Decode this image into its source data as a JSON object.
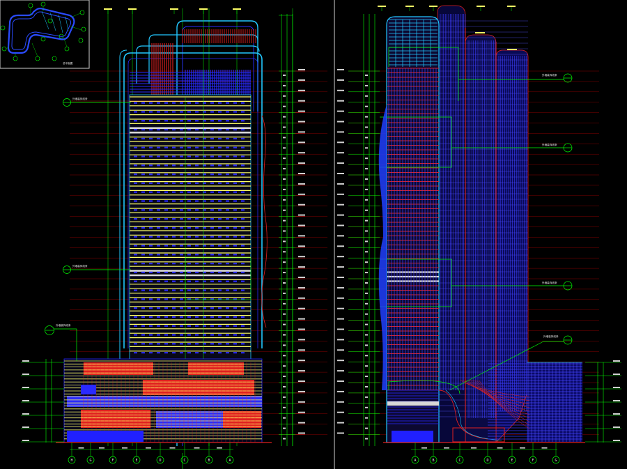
{
  "drawing": {
    "key_plan_label": "总平面图",
    "palette": {
      "background": "#000000",
      "grid_green": "#00ff00",
      "grid_red": "#c00000",
      "facade_yellow": "#ffff66",
      "facade_blue": "#2a2aff",
      "facade_red": "#e02020",
      "facade_cyan": "#22c8ff",
      "glass_white": "#d8d8d8"
    },
    "left_elevation": {
      "callouts": [
        "外墙装饰线条",
        "外墙装饰线条",
        "外墙装饰线条"
      ],
      "axis_labels": [
        "H",
        "G",
        "F",
        "E",
        "D",
        "C",
        "B",
        "A"
      ]
    },
    "right_elevation": {
      "callouts": [
        "外墙装饰线条",
        "外墙装饰线条",
        "外墙装饰线条",
        "外墙装饰线条"
      ],
      "axis_labels": [
        "A",
        "B",
        "C",
        "D",
        "E",
        "F",
        "G"
      ]
    },
    "level_count": 36
  }
}
